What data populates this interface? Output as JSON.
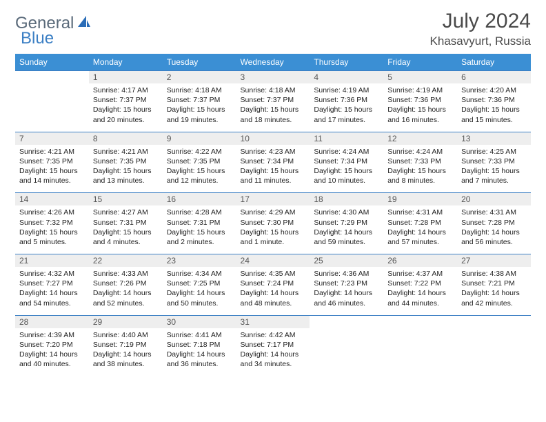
{
  "logo": {
    "part1": "General",
    "part2": "Blue"
  },
  "title": "July 2024",
  "location": "Khasavyurt, Russia",
  "colors": {
    "header_bg": "#3b8fd4",
    "daynum_bg": "#eeeeee",
    "border": "#3b7fc4",
    "logo_gray": "#5a6a7a",
    "logo_blue": "#3b7fc4"
  },
  "weekdays": [
    "Sunday",
    "Monday",
    "Tuesday",
    "Wednesday",
    "Thursday",
    "Friday",
    "Saturday"
  ],
  "weeks": [
    {
      "nums": [
        "",
        "1",
        "2",
        "3",
        "4",
        "5",
        "6"
      ],
      "cells": [
        {},
        {
          "sunrise": "Sunrise: 4:17 AM",
          "sunset": "Sunset: 7:37 PM",
          "day1": "Daylight: 15 hours",
          "day2": "and 20 minutes."
        },
        {
          "sunrise": "Sunrise: 4:18 AM",
          "sunset": "Sunset: 7:37 PM",
          "day1": "Daylight: 15 hours",
          "day2": "and 19 minutes."
        },
        {
          "sunrise": "Sunrise: 4:18 AM",
          "sunset": "Sunset: 7:37 PM",
          "day1": "Daylight: 15 hours",
          "day2": "and 18 minutes."
        },
        {
          "sunrise": "Sunrise: 4:19 AM",
          "sunset": "Sunset: 7:36 PM",
          "day1": "Daylight: 15 hours",
          "day2": "and 17 minutes."
        },
        {
          "sunrise": "Sunrise: 4:19 AM",
          "sunset": "Sunset: 7:36 PM",
          "day1": "Daylight: 15 hours",
          "day2": "and 16 minutes."
        },
        {
          "sunrise": "Sunrise: 4:20 AM",
          "sunset": "Sunset: 7:36 PM",
          "day1": "Daylight: 15 hours",
          "day2": "and 15 minutes."
        }
      ]
    },
    {
      "nums": [
        "7",
        "8",
        "9",
        "10",
        "11",
        "12",
        "13"
      ],
      "cells": [
        {
          "sunrise": "Sunrise: 4:21 AM",
          "sunset": "Sunset: 7:35 PM",
          "day1": "Daylight: 15 hours",
          "day2": "and 14 minutes."
        },
        {
          "sunrise": "Sunrise: 4:21 AM",
          "sunset": "Sunset: 7:35 PM",
          "day1": "Daylight: 15 hours",
          "day2": "and 13 minutes."
        },
        {
          "sunrise": "Sunrise: 4:22 AM",
          "sunset": "Sunset: 7:35 PM",
          "day1": "Daylight: 15 hours",
          "day2": "and 12 minutes."
        },
        {
          "sunrise": "Sunrise: 4:23 AM",
          "sunset": "Sunset: 7:34 PM",
          "day1": "Daylight: 15 hours",
          "day2": "and 11 minutes."
        },
        {
          "sunrise": "Sunrise: 4:24 AM",
          "sunset": "Sunset: 7:34 PM",
          "day1": "Daylight: 15 hours",
          "day2": "and 10 minutes."
        },
        {
          "sunrise": "Sunrise: 4:24 AM",
          "sunset": "Sunset: 7:33 PM",
          "day1": "Daylight: 15 hours",
          "day2": "and 8 minutes."
        },
        {
          "sunrise": "Sunrise: 4:25 AM",
          "sunset": "Sunset: 7:33 PM",
          "day1": "Daylight: 15 hours",
          "day2": "and 7 minutes."
        }
      ]
    },
    {
      "nums": [
        "14",
        "15",
        "16",
        "17",
        "18",
        "19",
        "20"
      ],
      "cells": [
        {
          "sunrise": "Sunrise: 4:26 AM",
          "sunset": "Sunset: 7:32 PM",
          "day1": "Daylight: 15 hours",
          "day2": "and 5 minutes."
        },
        {
          "sunrise": "Sunrise: 4:27 AM",
          "sunset": "Sunset: 7:31 PM",
          "day1": "Daylight: 15 hours",
          "day2": "and 4 minutes."
        },
        {
          "sunrise": "Sunrise: 4:28 AM",
          "sunset": "Sunset: 7:31 PM",
          "day1": "Daylight: 15 hours",
          "day2": "and 2 minutes."
        },
        {
          "sunrise": "Sunrise: 4:29 AM",
          "sunset": "Sunset: 7:30 PM",
          "day1": "Daylight: 15 hours",
          "day2": "and 1 minute."
        },
        {
          "sunrise": "Sunrise: 4:30 AM",
          "sunset": "Sunset: 7:29 PM",
          "day1": "Daylight: 14 hours",
          "day2": "and 59 minutes."
        },
        {
          "sunrise": "Sunrise: 4:31 AM",
          "sunset": "Sunset: 7:28 PM",
          "day1": "Daylight: 14 hours",
          "day2": "and 57 minutes."
        },
        {
          "sunrise": "Sunrise: 4:31 AM",
          "sunset": "Sunset: 7:28 PM",
          "day1": "Daylight: 14 hours",
          "day2": "and 56 minutes."
        }
      ]
    },
    {
      "nums": [
        "21",
        "22",
        "23",
        "24",
        "25",
        "26",
        "27"
      ],
      "cells": [
        {
          "sunrise": "Sunrise: 4:32 AM",
          "sunset": "Sunset: 7:27 PM",
          "day1": "Daylight: 14 hours",
          "day2": "and 54 minutes."
        },
        {
          "sunrise": "Sunrise: 4:33 AM",
          "sunset": "Sunset: 7:26 PM",
          "day1": "Daylight: 14 hours",
          "day2": "and 52 minutes."
        },
        {
          "sunrise": "Sunrise: 4:34 AM",
          "sunset": "Sunset: 7:25 PM",
          "day1": "Daylight: 14 hours",
          "day2": "and 50 minutes."
        },
        {
          "sunrise": "Sunrise: 4:35 AM",
          "sunset": "Sunset: 7:24 PM",
          "day1": "Daylight: 14 hours",
          "day2": "and 48 minutes."
        },
        {
          "sunrise": "Sunrise: 4:36 AM",
          "sunset": "Sunset: 7:23 PM",
          "day1": "Daylight: 14 hours",
          "day2": "and 46 minutes."
        },
        {
          "sunrise": "Sunrise: 4:37 AM",
          "sunset": "Sunset: 7:22 PM",
          "day1": "Daylight: 14 hours",
          "day2": "and 44 minutes."
        },
        {
          "sunrise": "Sunrise: 4:38 AM",
          "sunset": "Sunset: 7:21 PM",
          "day1": "Daylight: 14 hours",
          "day2": "and 42 minutes."
        }
      ]
    },
    {
      "nums": [
        "28",
        "29",
        "30",
        "31",
        "",
        "",
        ""
      ],
      "cells": [
        {
          "sunrise": "Sunrise: 4:39 AM",
          "sunset": "Sunset: 7:20 PM",
          "day1": "Daylight: 14 hours",
          "day2": "and 40 minutes."
        },
        {
          "sunrise": "Sunrise: 4:40 AM",
          "sunset": "Sunset: 7:19 PM",
          "day1": "Daylight: 14 hours",
          "day2": "and 38 minutes."
        },
        {
          "sunrise": "Sunrise: 4:41 AM",
          "sunset": "Sunset: 7:18 PM",
          "day1": "Daylight: 14 hours",
          "day2": "and 36 minutes."
        },
        {
          "sunrise": "Sunrise: 4:42 AM",
          "sunset": "Sunset: 7:17 PM",
          "day1": "Daylight: 14 hours",
          "day2": "and 34 minutes."
        },
        {},
        {},
        {}
      ]
    }
  ]
}
